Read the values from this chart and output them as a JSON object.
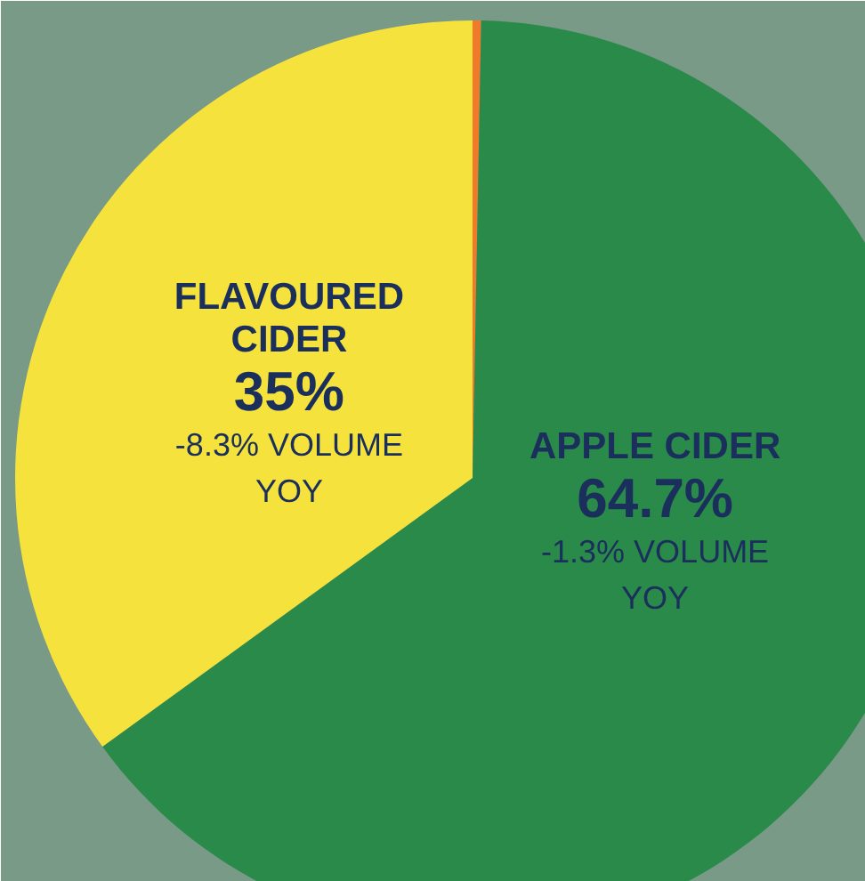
{
  "chart_data": {
    "type": "pie",
    "categories": [
      null,
      "APPLE CIDER",
      "FLAVOURED CIDER"
    ],
    "values": [
      0.3,
      64.7,
      35
    ],
    "colors": [
      "#f07a2a",
      "#2a8a4a",
      "#f5e23c"
    ],
    "value_labels": [
      null,
      "64.7%",
      "35%"
    ],
    "annotations": [
      "-1.3% VOLUME YOY",
      "-8.3% VOLUME YOY"
    ]
  }
}
